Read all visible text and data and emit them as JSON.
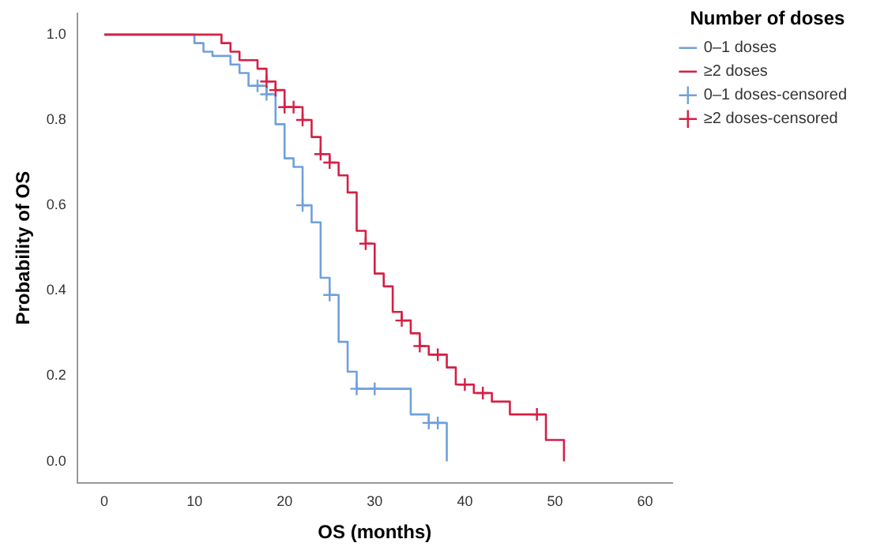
{
  "chart_data": {
    "type": "step",
    "xlabel": "OS (months)",
    "ylabel": "Probability of OS",
    "legend_title": "Number of doses",
    "legend": "top right",
    "grid": false,
    "xlim": [
      -3,
      63
    ],
    "xticks": [
      0,
      10,
      20,
      30,
      40,
      50,
      60
    ],
    "ylim": [
      -0.05,
      1.05
    ],
    "yticks": [
      {
        "value": 0,
        "label": "0.0"
      },
      {
        "value": 0.2,
        "label": "0.2"
      },
      {
        "value": 0.4,
        "label": "0.4"
      },
      {
        "value": 0.6,
        "label": "0.6"
      },
      {
        "value": 0.8,
        "label": "0.8"
      },
      {
        "value": 1,
        "label": "1.0"
      }
    ],
    "series": [
      {
        "name": "0–1 doses",
        "color": "#6fa0dc",
        "x": [
          0,
          10,
          11,
          12,
          14,
          15,
          16,
          18,
          19,
          20,
          21,
          22,
          23,
          24,
          25,
          26,
          27,
          28,
          34,
          36,
          38
        ],
        "values": [
          1,
          0.98,
          0.96,
          0.95,
          0.93,
          0.91,
          0.88,
          0.86,
          0.79,
          0.71,
          0.69,
          0.6,
          0.56,
          0.43,
          0.39,
          0.28,
          0.21,
          0.17,
          0.11,
          0.09,
          0
        ]
      },
      {
        "name": "≥2 doses",
        "color": "#d51f45",
        "x": [
          0,
          13,
          14,
          15,
          17,
          18,
          19,
          20,
          22,
          23,
          24,
          25,
          26,
          27,
          28,
          29,
          30,
          31,
          32,
          33,
          34,
          35,
          36,
          38,
          39,
          41,
          43,
          45,
          49,
          51
        ],
        "values": [
          1,
          0.98,
          0.96,
          0.94,
          0.92,
          0.89,
          0.87,
          0.83,
          0.8,
          0.76,
          0.72,
          0.7,
          0.67,
          0.63,
          0.54,
          0.51,
          0.44,
          0.41,
          0.35,
          0.33,
          0.3,
          0.27,
          0.25,
          0.22,
          0.18,
          0.16,
          0.14,
          0.11,
          0.05,
          0
        ]
      },
      {
        "name": "0–1 doses-censored",
        "type": "scatter",
        "marker": "cross",
        "color": "#6fa0dc",
        "x": [
          17,
          18,
          22,
          25,
          28,
          30,
          36,
          37
        ],
        "values": [
          0.88,
          0.86,
          0.6,
          0.39,
          0.17,
          0.17,
          0.09,
          0.09
        ]
      },
      {
        "name": "≥2 doses-censored",
        "type": "scatter",
        "marker": "cross",
        "color": "#d51f45",
        "x": [
          18,
          19,
          20,
          21,
          22,
          24,
          25,
          29,
          33,
          35,
          37,
          40,
          42,
          48
        ],
        "values": [
          0.89,
          0.87,
          0.83,
          0.83,
          0.8,
          0.72,
          0.7,
          0.51,
          0.33,
          0.27,
          0.25,
          0.18,
          0.16,
          0.11
        ]
      }
    ]
  }
}
